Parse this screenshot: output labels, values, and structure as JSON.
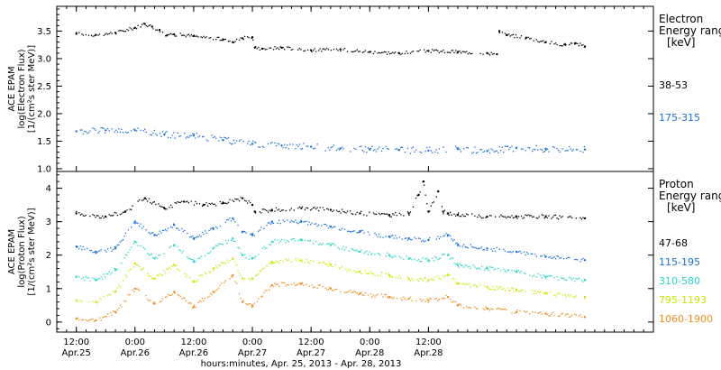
{
  "chart_data": [
    {
      "type": "scatter",
      "panel": "electron",
      "ylabel_lines": [
        "ACE EPAM",
        "log(Electron Flux)",
        "[1/(cm²s ster MeV)]"
      ],
      "ylim": [
        0.95,
        3.95
      ],
      "yticks": [
        1.0,
        1.5,
        2.0,
        2.5,
        3.0,
        3.5
      ],
      "yticklabels": [
        "1.0",
        "1.5",
        "2.0",
        "2.5",
        "3.0",
        "3.5"
      ],
      "legend_title": [
        "Electron",
        "Energy ranges",
        "[keV]"
      ],
      "series": [
        {
          "name": "38-53",
          "color": "#000000",
          "x": [
            0,
            4,
            8,
            12,
            14,
            15.5,
            17,
            18.5,
            20,
            24,
            30,
            32,
            34,
            36,
            36.5,
            38,
            42,
            48,
            54,
            60,
            66,
            72,
            78,
            84,
            86,
            86.5,
            88,
            92,
            96,
            100,
            102,
            104
          ],
          "y": [
            3.45,
            3.43,
            3.47,
            3.56,
            3.63,
            3.58,
            3.52,
            3.42,
            3.44,
            3.41,
            3.35,
            3.3,
            3.37,
            3.39,
            3.2,
            3.18,
            3.2,
            3.15,
            3.17,
            3.12,
            3.1,
            3.14,
            3.12,
            3.1,
            3.08,
            3.5,
            3.43,
            3.38,
            3.3,
            3.25,
            3.28,
            3.22
          ]
        },
        {
          "name": "175-315",
          "color": "#1a6fd6",
          "x": [
            0,
            6,
            12,
            18,
            24,
            30,
            36,
            42,
            48,
            54,
            60,
            66,
            72,
            78,
            84,
            90,
            96,
            104
          ],
          "y": [
            1.68,
            1.7,
            1.7,
            1.62,
            1.6,
            1.52,
            1.45,
            1.42,
            1.4,
            1.37,
            1.35,
            1.34,
            1.33,
            1.36,
            1.32,
            1.38,
            1.36,
            1.35
          ]
        }
      ]
    },
    {
      "type": "scatter",
      "panel": "proton",
      "ylabel_lines": [
        "ACE EPAM",
        "log(Proton Flux)",
        "[1/(cm²s ster MeV)]"
      ],
      "ylim": [
        -0.3,
        4.5
      ],
      "yticks": [
        0,
        1,
        2,
        3,
        4
      ],
      "yticklabels": [
        "0",
        "1",
        "2",
        "3",
        "4"
      ],
      "legend_title": [
        "Proton",
        "Energy ranges",
        "[keV]"
      ],
      "series": [
        {
          "name": "47-68",
          "color": "#000000",
          "x": [
            0,
            6,
            10,
            14,
            18,
            22,
            26,
            30,
            34,
            36,
            36.5,
            40,
            46,
            52,
            58,
            64,
            68,
            70,
            71,
            72,
            74,
            75,
            76,
            78,
            84,
            90,
            96,
            104
          ],
          "y": [
            3.25,
            3.15,
            3.3,
            3.7,
            3.4,
            3.6,
            3.5,
            3.55,
            3.7,
            3.5,
            3.3,
            3.35,
            3.4,
            3.35,
            3.25,
            3.2,
            3.25,
            3.8,
            4.2,
            3.3,
            3.9,
            3.3,
            3.25,
            3.2,
            3.15,
            3.15,
            3.15,
            3.1
          ]
        },
        {
          "name": "115-195",
          "color": "#1a6fd6",
          "x": [
            0,
            4,
            8,
            12,
            16,
            20,
            24,
            28,
            32,
            34,
            36,
            40,
            46,
            52,
            58,
            64,
            68,
            72,
            76,
            78,
            84,
            90,
            96,
            104
          ],
          "y": [
            2.25,
            2.1,
            2.2,
            3.0,
            2.6,
            2.9,
            2.5,
            2.8,
            3.1,
            2.7,
            2.6,
            3.0,
            3.0,
            2.85,
            2.7,
            2.55,
            2.5,
            2.45,
            2.6,
            2.3,
            2.2,
            2.1,
            1.95,
            1.85
          ]
        },
        {
          "name": "310-580",
          "color": "#26d6c8",
          "x": [
            0,
            4,
            8,
            12,
            16,
            20,
            24,
            28,
            32,
            34,
            36,
            40,
            46,
            52,
            58,
            64,
            68,
            72,
            76,
            78,
            84,
            90,
            96,
            104
          ],
          "y": [
            1.35,
            1.25,
            1.55,
            2.4,
            1.9,
            2.3,
            1.8,
            2.2,
            2.5,
            2.0,
            1.9,
            2.4,
            2.45,
            2.3,
            2.1,
            2.0,
            1.9,
            1.85,
            2.0,
            1.7,
            1.6,
            1.5,
            1.35,
            1.25
          ]
        },
        {
          "name": "795-1193",
          "color": "#c8e800",
          "x": [
            0,
            4,
            8,
            12,
            16,
            20,
            24,
            28,
            32,
            34,
            36,
            40,
            46,
            52,
            58,
            64,
            68,
            72,
            76,
            78,
            84,
            90,
            96,
            104
          ],
          "y": [
            0.65,
            0.6,
            0.9,
            1.75,
            1.3,
            1.7,
            1.2,
            1.6,
            1.9,
            1.3,
            1.3,
            1.8,
            1.85,
            1.7,
            1.5,
            1.4,
            1.3,
            1.25,
            1.4,
            1.15,
            1.05,
            0.95,
            0.85,
            0.75
          ]
        },
        {
          "name": "1060-1900",
          "color": "#f08c1e",
          "x": [
            0,
            4,
            8,
            12,
            16,
            20,
            24,
            28,
            32,
            34,
            36,
            40,
            46,
            52,
            58,
            64,
            68,
            72,
            76,
            78,
            84,
            90,
            96,
            104
          ],
          "y": [
            0.1,
            0.05,
            0.3,
            1.0,
            0.55,
            0.9,
            0.45,
            0.9,
            1.4,
            0.6,
            0.5,
            1.1,
            1.15,
            1.0,
            0.85,
            0.75,
            0.7,
            0.65,
            0.75,
            0.5,
            0.4,
            0.3,
            0.25,
            0.15
          ]
        }
      ]
    }
  ],
  "x_axis": {
    "range_hours": [
      -4,
      118
    ],
    "ticks": [
      {
        "hours": 0,
        "time": "12:00",
        "date": "Apr.25"
      },
      {
        "hours": 12,
        "time": "0:00",
        "date": "Apr.26"
      },
      {
        "hours": 24,
        "time": "12:00",
        "date": "Apr.26"
      },
      {
        "hours": 36,
        "time": "0:00",
        "date": "Apr.27"
      },
      {
        "hours": 48,
        "time": "12:00",
        "date": "Apr.27"
      },
      {
        "hours": 60,
        "time": "0:00",
        "date": "Apr.28"
      },
      {
        "hours": 72,
        "time": "12:00",
        "date": "Apr.28"
      }
    ],
    "xlabel": "hours:minutes, Apr. 25, 2013 - Apr. 28, 2013"
  }
}
